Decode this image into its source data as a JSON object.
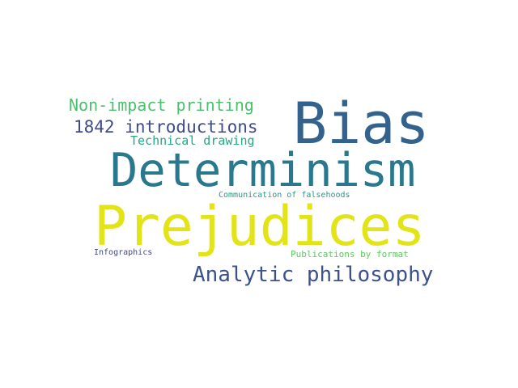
{
  "word_cloud": {
    "words": [
      {
        "text": "Bias",
        "color": "#33638d"
      },
      {
        "text": "Determinism",
        "color": "#2a788e"
      },
      {
        "text": "Prejudices",
        "color": "#e2e418"
      },
      {
        "text": "Non-impact printing",
        "color": "#4ac16d"
      },
      {
        "text": "1842 introductions",
        "color": "#3e4c8a"
      },
      {
        "text": "Technical drawing",
        "color": "#22a884"
      },
      {
        "text": "Analytic philosophy",
        "color": "#3b528b"
      },
      {
        "text": "Communication of falsehoods",
        "color": "#1f9e89"
      },
      {
        "text": "Infographics",
        "color": "#3e4a89"
      },
      {
        "text": "Publications by format",
        "color": "#5ec962"
      }
    ]
  }
}
